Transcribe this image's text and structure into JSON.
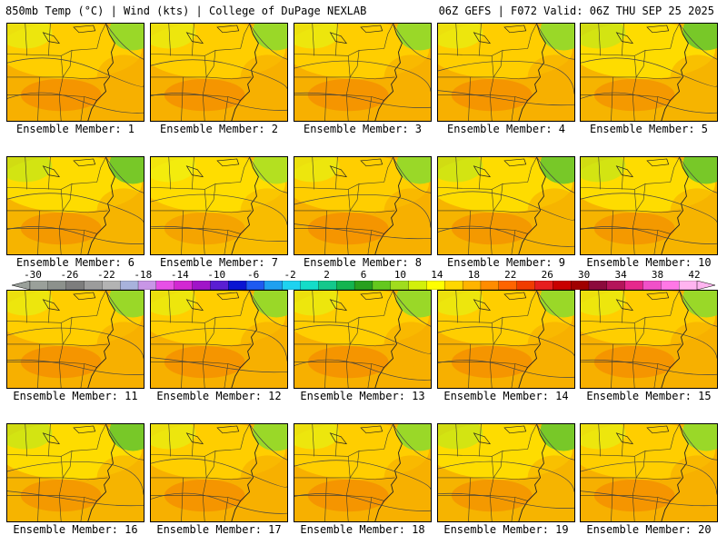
{
  "header": {
    "left": "850mb Temp (°C) | Wind (kts) | College of DuPage NEXLAB",
    "right": "06Z GEFS | F072 Valid: 06Z THU SEP 25 2025"
  },
  "panels": [
    {
      "label": "Ensemble Member: 1",
      "palette": "orange"
    },
    {
      "label": "Ensemble Member: 2",
      "palette": "orange"
    },
    {
      "label": "Ensemble Member: 3",
      "palette": "orange"
    },
    {
      "label": "Ensemble Member: 4",
      "palette": "orange"
    },
    {
      "label": "Ensemble Member: 5",
      "palette": "green"
    },
    {
      "label": "Ensemble Member: 6",
      "palette": "green"
    },
    {
      "label": "Ensemble Member: 7",
      "palette": "yellow"
    },
    {
      "label": "Ensemble Member: 8",
      "palette": "orange"
    },
    {
      "label": "Ensemble Member: 9",
      "palette": "green"
    },
    {
      "label": "Ensemble Member: 10",
      "palette": "green"
    },
    {
      "label": "Ensemble Member: 11",
      "palette": "orange"
    },
    {
      "label": "Ensemble Member: 12",
      "palette": "orange"
    },
    {
      "label": "Ensemble Member: 13",
      "palette": "orange"
    },
    {
      "label": "Ensemble Member: 14",
      "palette": "orange"
    },
    {
      "label": "Ensemble Member: 15",
      "palette": "orange"
    },
    {
      "label": "Ensemble Member: 16",
      "palette": "green"
    },
    {
      "label": "Ensemble Member: 17",
      "palette": "orange"
    },
    {
      "label": "Ensemble Member: 18",
      "palette": "orange"
    },
    {
      "label": "Ensemble Member: 19",
      "palette": "green"
    },
    {
      "label": "Ensemble Member: 20",
      "palette": "orange"
    }
  ],
  "colorbar": {
    "tick_labels": [
      "-30",
      "-26",
      "-22",
      "-18",
      "-14",
      "-10",
      "-6",
      "-2",
      "2",
      "6",
      "10",
      "14",
      "18",
      "22",
      "26",
      "30",
      "34",
      "38",
      "42"
    ],
    "colors": [
      "#9aa09a",
      "#8c918c",
      "#7d7d7d",
      "#9c9c9c",
      "#b3b3b3",
      "#a8b2dc",
      "#c896e6",
      "#e650e6",
      "#d228d2",
      "#a014c8",
      "#5a1ed2",
      "#0a14d2",
      "#1e5af0",
      "#1ea0f0",
      "#1ed2f0",
      "#14dcc8",
      "#14c88c",
      "#14b450",
      "#28a01e",
      "#64c81e",
      "#a0dc1e",
      "#d2f00a",
      "#ffff00",
      "#ffd700",
      "#ffb400",
      "#ff8c00",
      "#ff6400",
      "#f03c00",
      "#e61e1e",
      "#c80000",
      "#a00000",
      "#8c0a3c",
      "#b4145a",
      "#e6288c",
      "#f050c8",
      "#ff78e6",
      "#ffb4f0"
    ]
  }
}
